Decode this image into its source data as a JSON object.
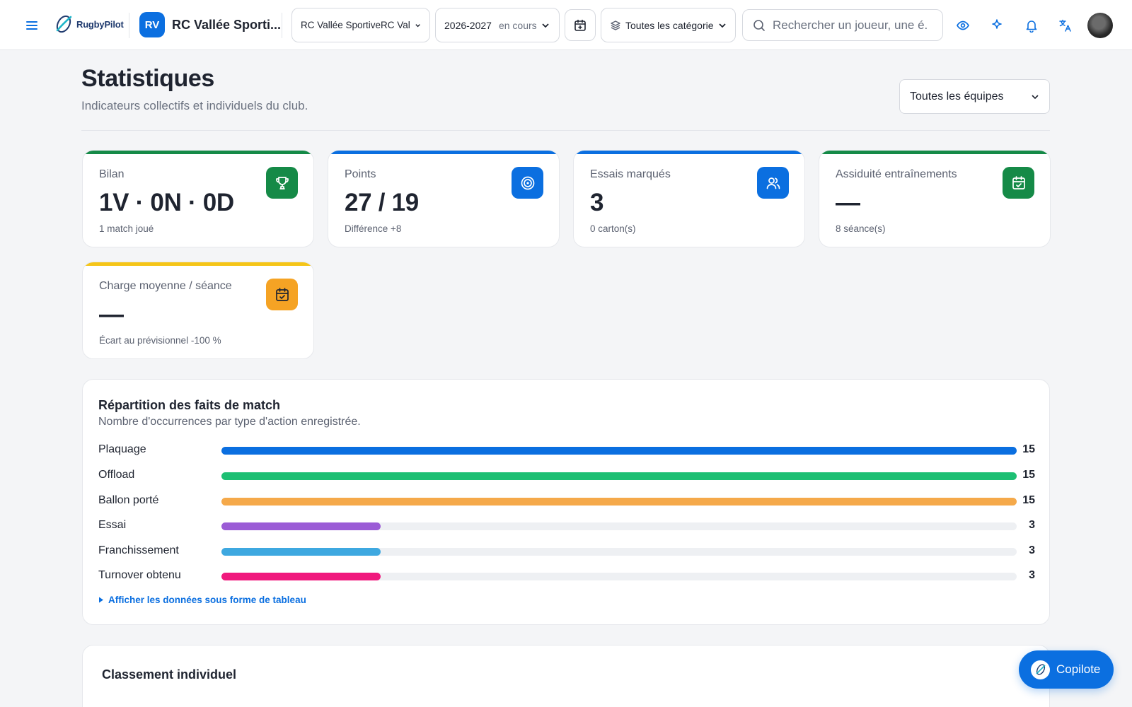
{
  "topbar": {
    "logo_text": "RugbyPilot",
    "club_badge": "RV",
    "club_name": "RC Vallée Sporti...",
    "club_select": "RC Vallée SportiveRC Val",
    "season_select": "2026-2027",
    "season_status": "en cours",
    "category_select": "Toutes les catégorie",
    "search_placeholder": "Rechercher un joueur, une é...",
    "icons": [
      "menu-icon",
      "calendar-plus-icon",
      "layers-icon",
      "search-icon",
      "eye-icon",
      "sparkle-icon",
      "bell-icon",
      "translate-icon"
    ]
  },
  "page": {
    "title": "Statistiques",
    "subtitle": "Indicateurs collectifs et individuels du club.",
    "team_filter": "Toutes les équipes"
  },
  "cards": [
    {
      "label": "Bilan",
      "value": "1V · 0N · 0D",
      "note": "1 match joué",
      "icon": "trophy-icon",
      "accent": "#158a47"
    },
    {
      "label": "Points",
      "value": "27 / 19",
      "note": "Différence +8",
      "icon": "target-icon",
      "accent": "#0b6fe0"
    },
    {
      "label": "Essais marqués",
      "value": "3",
      "note": "0 carton(s)",
      "icon": "users-icon",
      "accent": "#0b6fe0"
    },
    {
      "label": "Assiduité entraînements",
      "value": "—",
      "note": "8 séance(s)",
      "icon": "calendar-check-icon",
      "accent": "#158a47"
    },
    {
      "label": "Charge moyenne / séance",
      "value": "—",
      "note": "Écart au prévisionnel -100 %",
      "icon": "calendar-check-icon",
      "accent": "#f5a324",
      "top_accent": "#f5c518"
    }
  ],
  "breakdown": {
    "title": "Répartition des faits de match",
    "subtitle": "Nombre d'occurrences par type d'action enregistrée.",
    "table_toggle": "Afficher les données sous forme de tableau",
    "max": 15,
    "rows": [
      {
        "label": "Plaquage",
        "value": 15,
        "color": "#0b6fe0"
      },
      {
        "label": "Offload",
        "value": 15,
        "color": "#1dbf73"
      },
      {
        "label": "Ballon porté",
        "value": 15,
        "color": "#f5a94a"
      },
      {
        "label": "Essai",
        "value": 3,
        "color": "#9b5cd6"
      },
      {
        "label": "Franchissement",
        "value": 3,
        "color": "#3ea8e0"
      },
      {
        "label": "Turnover obtenu",
        "value": 3,
        "color": "#f0197d"
      }
    ]
  },
  "ranking": {
    "title": "Classement individuel"
  },
  "copilot": {
    "label": "Copilote"
  }
}
